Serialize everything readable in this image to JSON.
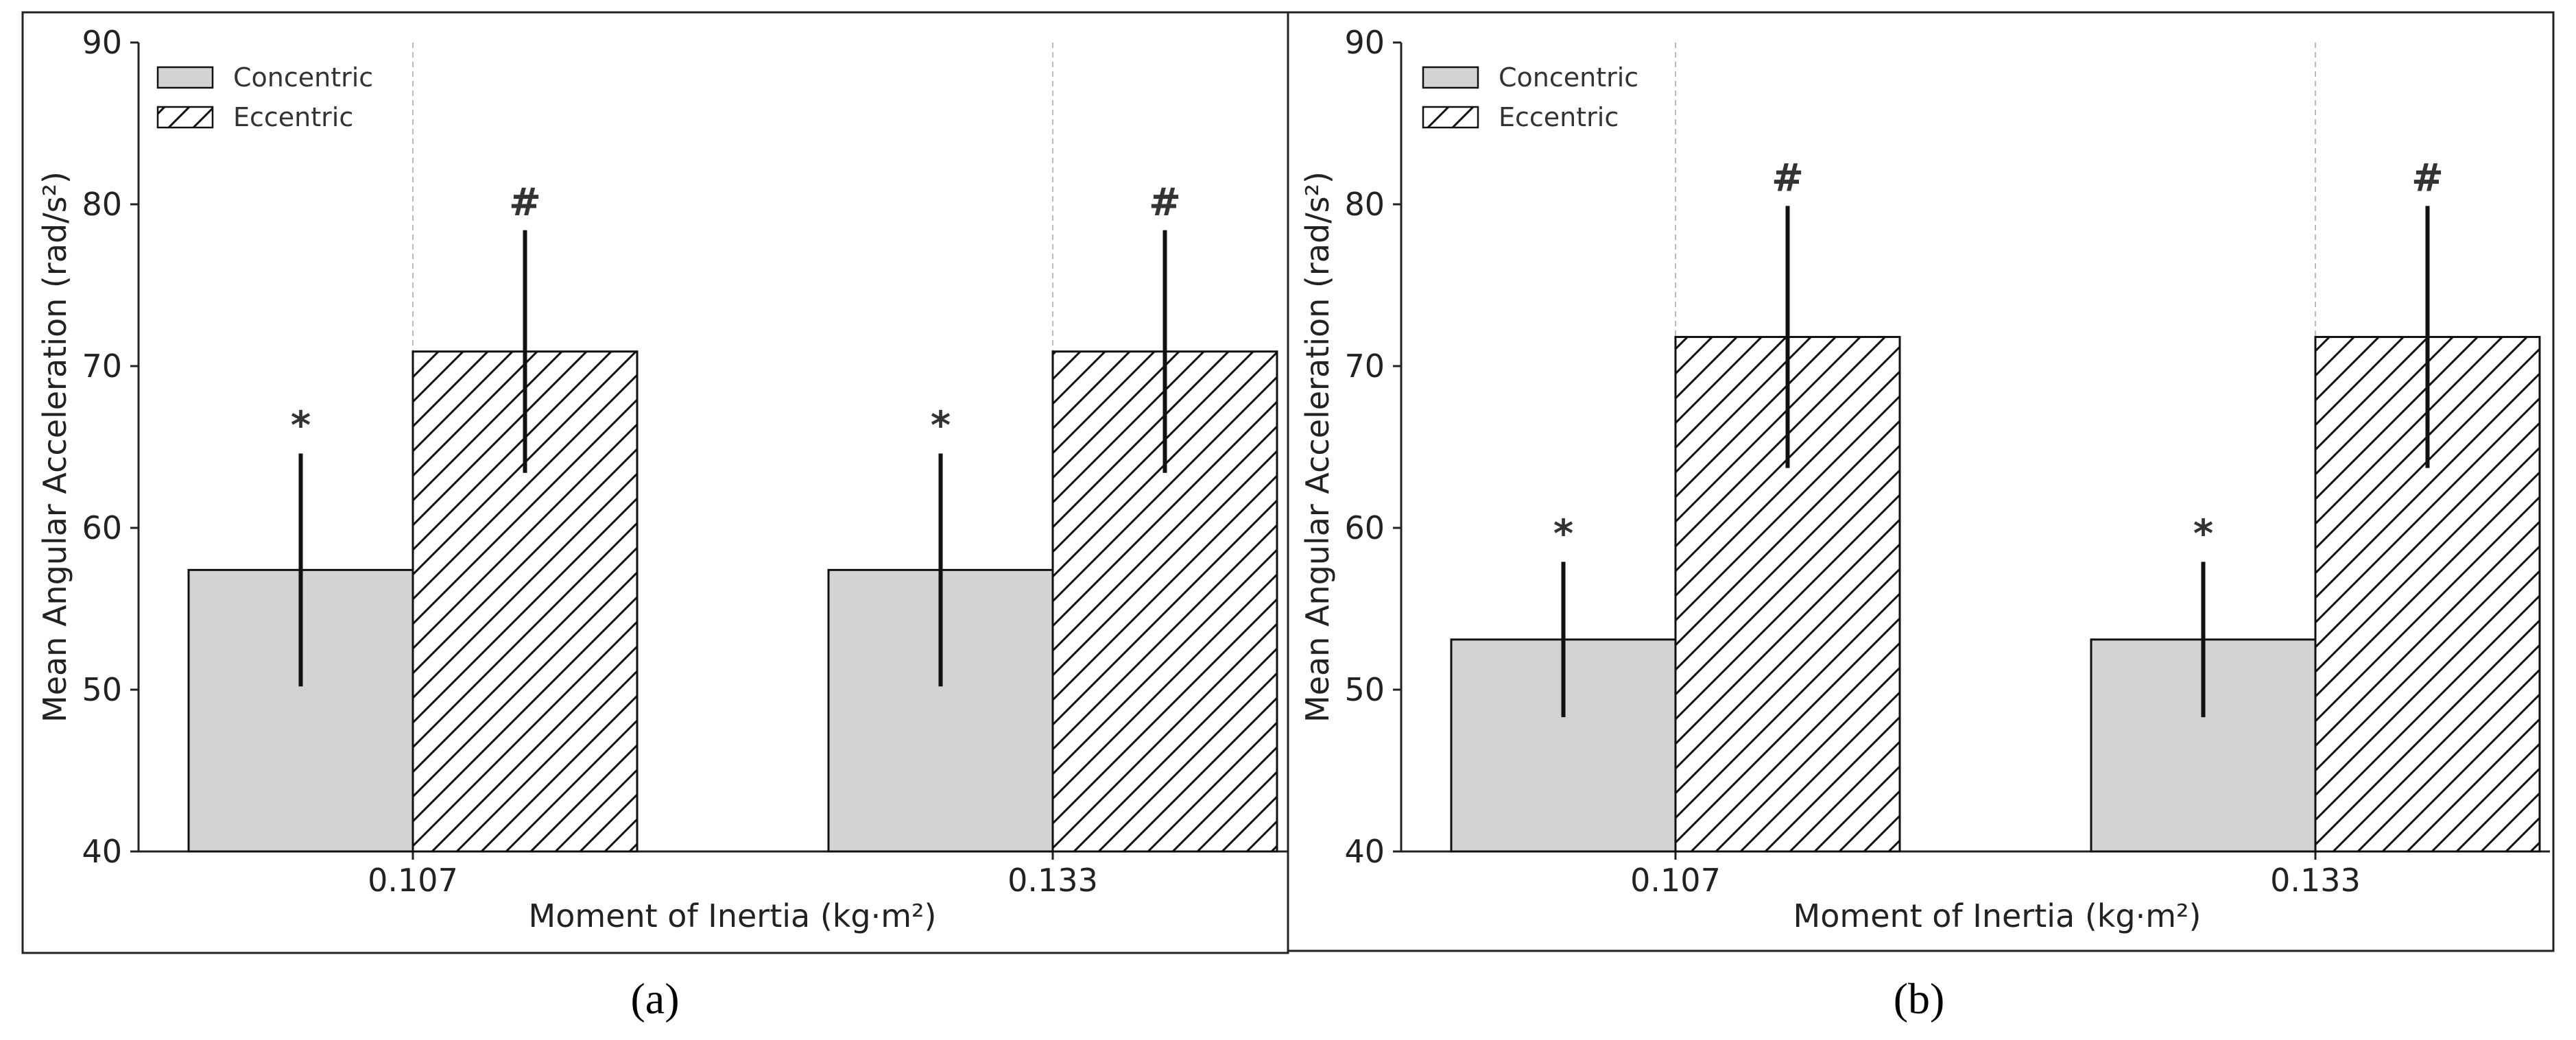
{
  "colors": {
    "concentric_fill": "#d3d3d3",
    "eccentric_fill": "#ffffff",
    "hatch": "#111111",
    "bar_edge": "#111111",
    "error_bar": "#111111",
    "separator": "#bbbbbb"
  },
  "chart_data": [
    {
      "type": "bar",
      "panel_label": "(a)",
      "categories": [
        "0.107",
        "0.133"
      ],
      "series": [
        {
          "name": "Concentric",
          "values": [
            57.4,
            57.4
          ],
          "errors": [
            7.2,
            7.2
          ],
          "marks": [
            "*",
            "*"
          ],
          "pattern": "solid"
        },
        {
          "name": "Eccentric",
          "values": [
            70.9,
            70.9
          ],
          "errors": [
            7.5,
            7.5
          ],
          "marks": [
            "#",
            "#"
          ],
          "pattern": "hatch"
        }
      ],
      "xlabel": "Moment of Inertia (kg·m²)",
      "ylabel": "Mean Angular Acceleration (rad/s²)",
      "ylim": [
        40,
        90
      ],
      "yticks": [
        "40",
        "50",
        "60",
        "70",
        "80",
        "90"
      ],
      "legend_position": "top-left",
      "grid": false
    },
    {
      "type": "bar",
      "panel_label": "(b)",
      "categories": [
        "0.107",
        "0.133"
      ],
      "series": [
        {
          "name": "Concentric",
          "values": [
            53.1,
            53.1
          ],
          "errors": [
            4.8,
            4.8
          ],
          "marks": [
            "*",
            "*"
          ],
          "pattern": "solid"
        },
        {
          "name": "Eccentric",
          "values": [
            71.8,
            71.8
          ],
          "errors": [
            8.1,
            8.1
          ],
          "marks": [
            "#",
            "#"
          ],
          "pattern": "hatch"
        }
      ],
      "xlabel": "Moment of Inertia (kg·m²)",
      "ylabel": "Mean Angular Acceleration (rad/s²)",
      "ylim": [
        40,
        90
      ],
      "yticks": [
        "40",
        "50",
        "60",
        "70",
        "80",
        "90"
      ],
      "legend_position": "top-left",
      "grid": false
    }
  ]
}
